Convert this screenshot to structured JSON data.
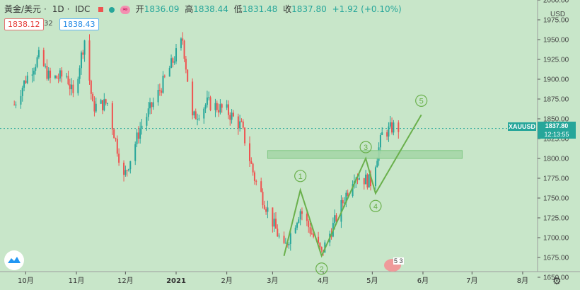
{
  "header": {
    "symbol": "黃金/美元",
    "interval": "1D",
    "source": "IDC",
    "wave_icon_glyph": "≈",
    "open_label": "开",
    "open": "1836.09",
    "high_label": "高",
    "high": "1838.44",
    "low_label": "低",
    "low": "1831.48",
    "close_label": "收",
    "close": "1837.80",
    "change": "+1.92 (+0.10%)"
  },
  "quotes": {
    "sell": "1838.12",
    "spread": "32",
    "buy": "1838.43"
  },
  "price_axis": {
    "currency": "USD",
    "ticker_label": "XAUUSD",
    "last_price": "1837.80",
    "countdown": "12:13:55"
  },
  "event_badge": "5 3",
  "icons": {
    "logo": "tradingview-cloud-icon",
    "settings": "gear-icon",
    "event": "us-flag-icon"
  },
  "colors": {
    "background": "#c8e6c9",
    "up": "#26a69a",
    "down": "#ef5350",
    "annotation": "#6ab04c",
    "zone": "#a5d6a7"
  },
  "chart_data": {
    "type": "candlestick",
    "y_range": [
      1650,
      2000
    ],
    "y_ticks": [
      "1650.00",
      "1675.00",
      "1700.00",
      "1725.00",
      "1750.00",
      "1775.00",
      "1800.00",
      "1825.00",
      "1850.00",
      "1875.00",
      "1900.00",
      "1925.00",
      "1950.00",
      "1975.00",
      "2000.00"
    ],
    "x_ticks": [
      "10月",
      "11月",
      "12月",
      "2021",
      "2月",
      "3月",
      "4月",
      "5月",
      "6月",
      "7月",
      "8月"
    ],
    "last_close": 1837.8,
    "approx_close_path": [
      [
        "2020-09-24",
        1868
      ],
      [
        "2020-10-01",
        1900
      ],
      [
        "2020-10-09",
        1928
      ],
      [
        "2020-10-16",
        1900
      ],
      [
        "2020-10-26",
        1905
      ],
      [
        "2020-10-30",
        1878
      ],
      [
        "2020-11-06",
        1950
      ],
      [
        "2020-11-11",
        1865
      ],
      [
        "2020-11-20",
        1870
      ],
      [
        "2020-11-30",
        1775
      ],
      [
        "2020-12-10",
        1838
      ],
      [
        "2020-12-21",
        1882
      ],
      [
        "2021-01-05",
        1950
      ],
      [
        "2021-01-11",
        1850
      ],
      [
        "2021-01-20",
        1870
      ],
      [
        "2021-02-01",
        1860
      ],
      [
        "2021-02-10",
        1840
      ],
      [
        "2021-02-18",
        1775
      ],
      [
        "2021-02-26",
        1735
      ],
      [
        "2021-03-08",
        1685
      ],
      [
        "2021-03-18",
        1735
      ],
      [
        "2021-03-31",
        1680
      ],
      [
        "2021-04-12",
        1740
      ],
      [
        "2021-04-20",
        1780
      ],
      [
        "2021-04-30",
        1770
      ],
      [
        "2021-05-07",
        1830
      ],
      [
        "2021-05-14",
        1840
      ],
      [
        "2021-05-17",
        1837.8
      ]
    ],
    "annotations": {
      "wave_points": [
        {
          "label": "1",
          "date": "2021-03-18",
          "price": 1760
        },
        {
          "label": "2",
          "date": "2021-03-31",
          "price": 1677
        },
        {
          "label": "3",
          "date": "2021-04-27",
          "price": 1800
        },
        {
          "label": "4",
          "date": "2021-05-03",
          "price": 1756
        },
        {
          "label": "5",
          "date": "2021-05-31",
          "price": 1855
        }
      ],
      "zone": {
        "from": "2021-02-26",
        "to": "2021-06-25",
        "low": 1800,
        "high": 1810
      }
    }
  }
}
